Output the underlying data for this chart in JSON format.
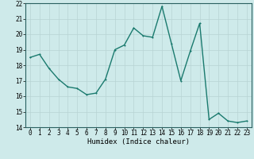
{
  "x": [
    0,
    1,
    2,
    3,
    4,
    5,
    6,
    7,
    8,
    9,
    10,
    11,
    12,
    13,
    14,
    15,
    16,
    17,
    18,
    19,
    20,
    21,
    22,
    23
  ],
  "y": [
    18.5,
    18.7,
    17.8,
    17.1,
    16.6,
    16.5,
    16.1,
    16.2,
    17.1,
    19.0,
    19.3,
    20.4,
    19.9,
    19.8,
    21.8,
    19.4,
    17.0,
    18.9,
    20.7,
    14.5,
    14.9,
    14.4,
    14.3,
    14.4
  ],
  "line_color": "#1a7a6e",
  "marker_color": "#1a7a6e",
  "bg_color": "#ceeaea",
  "grid_color": "#b8d4d4",
  "xlabel": "Humidex (Indice chaleur)",
  "ylim": [
    14,
    22
  ],
  "xlim": [
    -0.5,
    23.5
  ],
  "yticks": [
    14,
    15,
    16,
    17,
    18,
    19,
    20,
    21,
    22
  ],
  "xticks": [
    0,
    1,
    2,
    3,
    4,
    5,
    6,
    7,
    8,
    9,
    10,
    11,
    12,
    13,
    14,
    15,
    16,
    17,
    18,
    19,
    20,
    21,
    22,
    23
  ],
  "tick_fontsize": 5.5,
  "xlabel_fontsize": 6.5,
  "linewidth": 1.0,
  "markersize": 2.0
}
